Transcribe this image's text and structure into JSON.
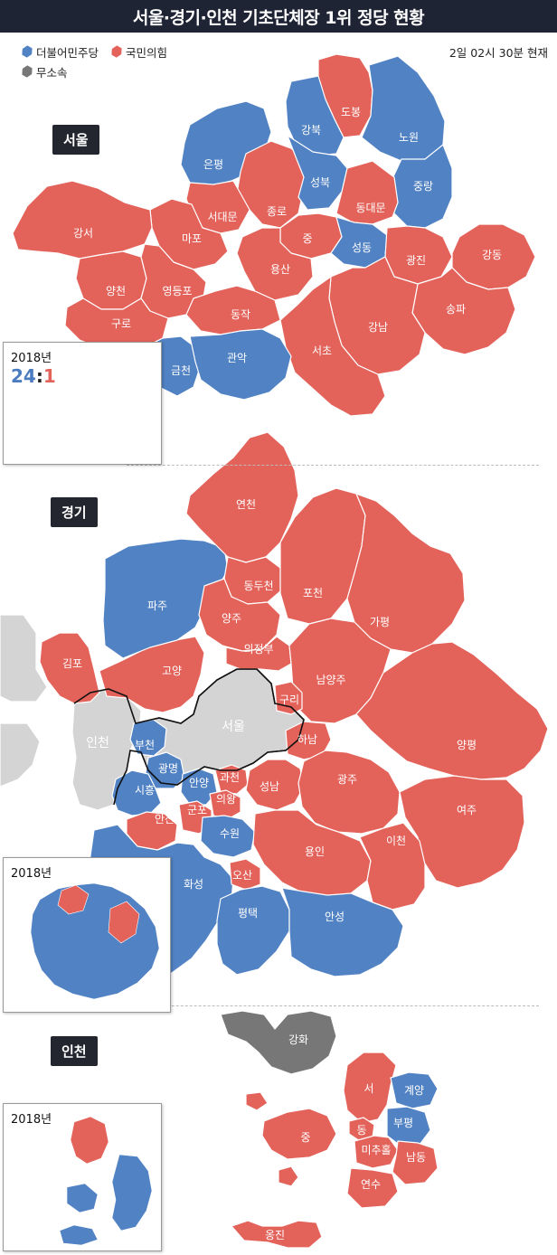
{
  "title": "서울·경기·인천 기초단체장 1위 정당 현황",
  "timestamp": "2일 02시 30분 현재",
  "colors": {
    "democratic": "#5182c4",
    "ppp": "#e3625a",
    "independent": "#777777",
    "neighbor": "#d4d4d4"
  },
  "legend": [
    {
      "label": "더불어민주당",
      "color": "#5182c4"
    },
    {
      "label": "국민의힘",
      "color": "#e3625a"
    },
    {
      "label": "무소속",
      "color": "#777777"
    }
  ],
  "seoul": {
    "tag": "서울",
    "districts": [
      "도봉",
      "강북",
      "노원",
      "은평",
      "성북",
      "중랑",
      "종로",
      "서대문",
      "동대문",
      "마포",
      "중",
      "성동",
      "광진",
      "강동",
      "강서",
      "양천",
      "영등포",
      "용산",
      "송파",
      "구로",
      "동작",
      "강남",
      "금천",
      "관악",
      "서초"
    ],
    "inset": {
      "year": "2018년",
      "score_left": "24",
      "score_sep": ":",
      "score_right": "1"
    }
  },
  "gyeonggi": {
    "tag": "경기",
    "cities": [
      "연천",
      "포천",
      "동두천",
      "가평",
      "파주",
      "양주",
      "의정부",
      "김포",
      "고양",
      "남양주",
      "구리",
      "하남",
      "양평",
      "부천",
      "광명",
      "과천",
      "시흥",
      "안양",
      "성남",
      "광주",
      "의왕",
      "안산",
      "군포",
      "여주",
      "수원",
      "용인",
      "이천",
      "오산",
      "화성",
      "평택",
      "안성"
    ],
    "neighbors": [
      "인천",
      "서울"
    ],
    "inset": {
      "year": "2018년"
    }
  },
  "incheon": {
    "tag": "인천",
    "districts": [
      "강화",
      "서",
      "계양",
      "동",
      "부평",
      "미추홀",
      "남동",
      "중",
      "연수",
      "옹진"
    ],
    "inset": {
      "year": "2018년"
    }
  }
}
